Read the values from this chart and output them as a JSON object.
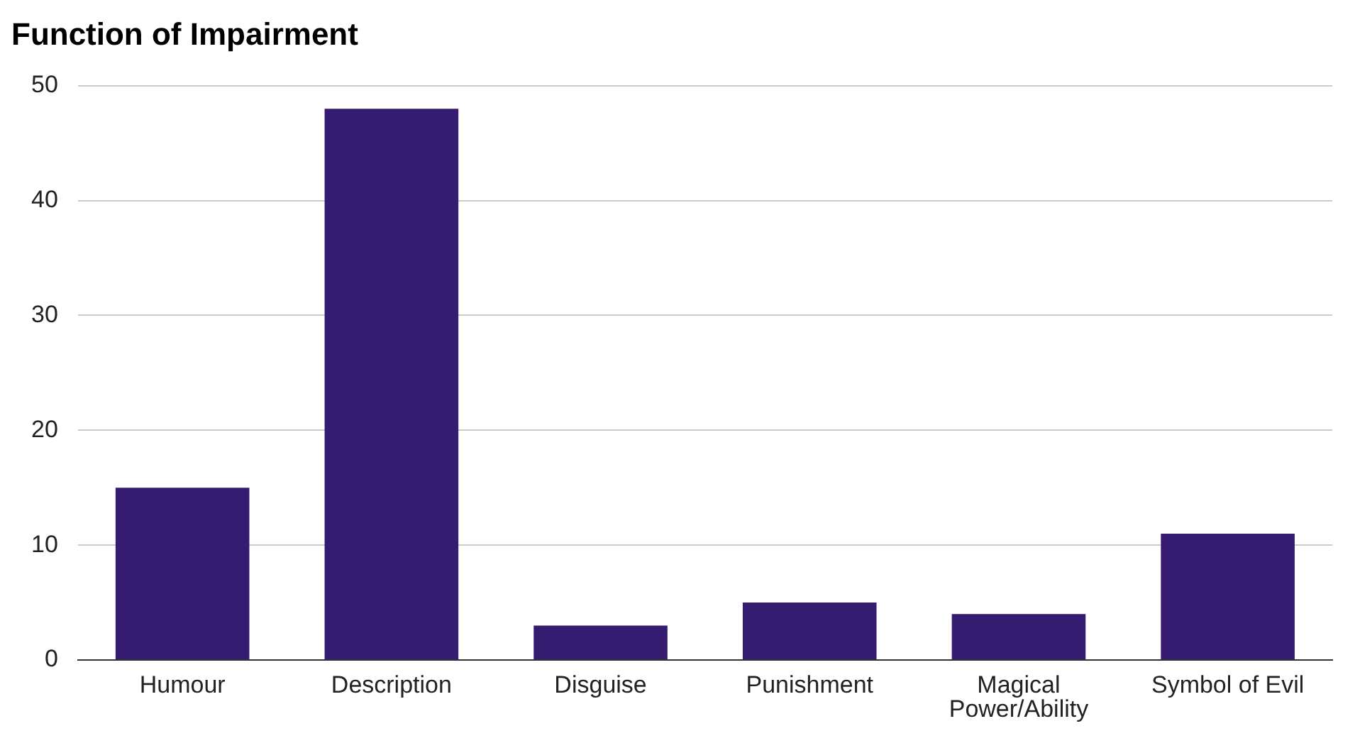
{
  "chart_data": {
    "type": "bar",
    "title": "Function of Impairment",
    "categories": [
      "Humour",
      "Description",
      "Disguise",
      "Punishment",
      "Magical Power/Ability",
      "Symbol of Evil"
    ],
    "values": [
      15,
      48,
      3,
      5,
      4,
      11
    ],
    "color": "#351c70",
    "ylim": [
      0,
      50
    ],
    "yticks": [
      0,
      10,
      20,
      30,
      40,
      50
    ],
    "grid": "y"
  }
}
